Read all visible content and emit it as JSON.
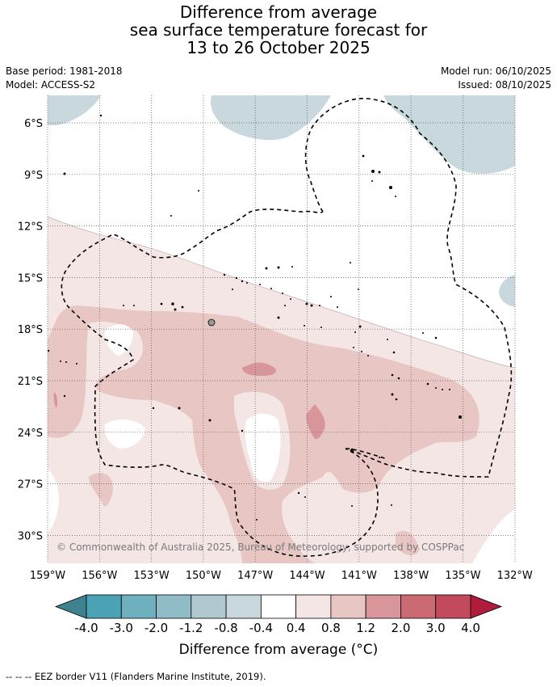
{
  "title": {
    "line1": "Difference from average",
    "line2": "sea surface temperature forecast for",
    "line3": "13 to 26 October 2025"
  },
  "meta": {
    "base_period": "Base period: 1981-2018",
    "model": "Model: ACCESS-S2",
    "model_run": "Model run: 06/10/2025",
    "issued": "Issued: 08/10/2025"
  },
  "map": {
    "lat_labels": [
      "6°S",
      "9°S",
      "12°S",
      "15°S",
      "18°S",
      "21°S",
      "24°S",
      "27°S",
      "30°S"
    ],
    "lon_labels": [
      "159°W",
      "156°W",
      "153°W",
      "150°W",
      "147°W",
      "144°W",
      "141°W",
      "138°W",
      "135°W",
      "132°W"
    ],
    "copyright": "© Commonwealth of Australia 2025, Bureau of Meteorology, supported by COSPPac"
  },
  "colorbar": {
    "ticks": [
      "-4.0",
      "-3.0",
      "-2.0",
      "-1.2",
      "-0.8",
      "-0.4",
      "0.4",
      "0.8",
      "1.2",
      "2.0",
      "3.0",
      "4.0"
    ],
    "colors": [
      "#3e8290",
      "#4aa2b4",
      "#6fb0bf",
      "#8fbcc7",
      "#b0c9d0",
      "#c8d8dc",
      "#ffffff",
      "#f5e6e6",
      "#e8c6c4",
      "#d8959a",
      "#cc6a73",
      "#c14a5c",
      "#b01c3c"
    ],
    "label": "Difference from average (°C)"
  },
  "footer": "--  --  -- EEZ border V11 (Flanders Marine Institute, 2019)."
}
